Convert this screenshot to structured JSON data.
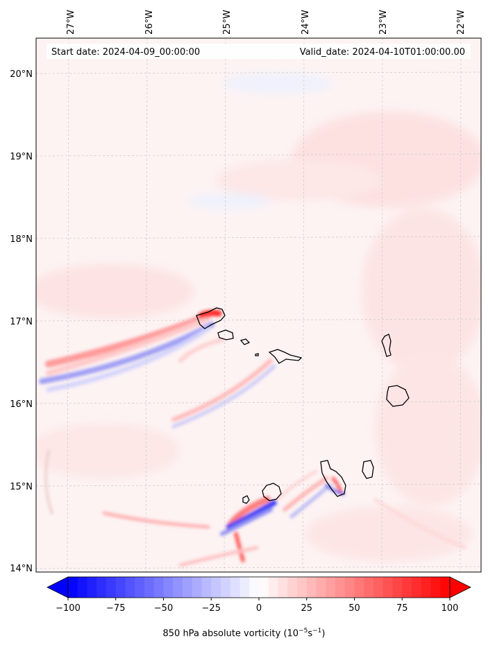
{
  "header": {
    "start_date": "Start date: 2024-04-09_00:00:00",
    "valid_date": "Valid_date: 2024-04-10T01:00:00.00"
  },
  "map": {
    "lon_labels": [
      "27°W",
      "26°W",
      "25°W",
      "24°W",
      "23°W",
      "22°W"
    ],
    "lat_labels": [
      "20°N",
      "19°N",
      "18°N",
      "17°N",
      "16°N",
      "15°N",
      "14°N"
    ],
    "gridlines": "dashed",
    "colors": {
      "positive": "#ff0000",
      "negative": "#0000ff",
      "neutral": "#ffffff"
    },
    "islands": [
      "Santo Antão",
      "São Vicente",
      "Santa Luzia",
      "São Nicolau",
      "Sal",
      "Boa Vista",
      "Brava",
      "Fogo",
      "Santiago",
      "Maio"
    ]
  },
  "colorbar": {
    "ticks": [
      "−100",
      "−75",
      "−50",
      "−25",
      "0",
      "25",
      "50",
      "75",
      "100"
    ],
    "min": -100,
    "max": 100,
    "extend": "both",
    "label_prefix": "850 hPa absolute vorticity (10",
    "label_exp1": "−5",
    "label_mid": "s",
    "label_exp2": "−1",
    "label_suffix": ")"
  }
}
